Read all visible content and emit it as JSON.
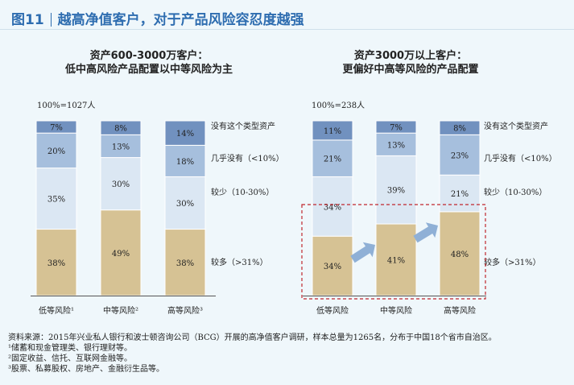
{
  "title": {
    "label": "图11",
    "text": "越高净值客户，对于产品风险容忍度越强"
  },
  "chart_data": [
    {
      "type": "bar",
      "stacked": true,
      "title_lines": [
        "资产600-3000万客户：",
        "低中高风险产品配置以中等风险为主"
      ],
      "total_note": "100%=1027人",
      "categories": [
        "低等风险¹",
        "中等风险²",
        "高等风险³"
      ],
      "series": [
        {
          "name": "较多（>31%）",
          "values": [
            38,
            49,
            38
          ],
          "labels": [
            "38%",
            "49%",
            "38%"
          ],
          "color": "#d6c294"
        },
        {
          "name": "较少（10-30%）",
          "values": [
            35,
            30,
            30
          ],
          "labels": [
            "35%",
            "30%",
            "30%"
          ],
          "color": "#dbe7f3"
        },
        {
          "name": "几乎没有（<10%）",
          "values": [
            20,
            13,
            18
          ],
          "labels": [
            "20%",
            "13%",
            "18%"
          ],
          "color": "#a6bfdd"
        },
        {
          "name": "没有这个类型资产",
          "values": [
            7,
            8,
            14
          ],
          "labels": [
            "7%",
            "8%",
            "14%"
          ],
          "color": "#7191bf"
        }
      ],
      "ylim": [
        0,
        100
      ]
    },
    {
      "type": "bar",
      "stacked": true,
      "title_lines": [
        "资产3000万以上客户：",
        "更偏好中高等风险的产品配置"
      ],
      "total_note": "100%=238人",
      "categories": [
        "低等风险",
        "中等风险",
        "高等风险"
      ],
      "series": [
        {
          "name": "较多（>31%）",
          "values": [
            34,
            41,
            48
          ],
          "labels": [
            "34%",
            "41%",
            "48%"
          ],
          "color": "#d6c294"
        },
        {
          "name": "较少（10-30%）",
          "values": [
            34,
            39,
            21
          ],
          "labels": [
            "34%",
            "39%",
            "21%"
          ],
          "color": "#dbe7f3"
        },
        {
          "name": "几乎没有（<10%）",
          "values": [
            21,
            13,
            23
          ],
          "labels": [
            "21%",
            "13%",
            "23%"
          ],
          "color": "#a6bfdd"
        },
        {
          "name": "没有这个类型资产",
          "values": [
            11,
            7,
            8
          ],
          "labels": [
            "11%",
            "7%",
            "8%"
          ],
          "color": "#7191bf"
        }
      ],
      "ylim": [
        0,
        100
      ],
      "highlight_series": "较多（>31%）",
      "arrows": true
    }
  ],
  "footnotes": [
    "资料来源：2015年兴业私人银行和波士顿咨询公司（BCG）开展的高净值客户调研，样本总量为1265名，分布于中国18个省市自治区。",
    "¹储蓄和现金管理类、银行理财等。",
    "²固定收益、信托、互联网金融等。",
    "³股票、私募股权、房地产、金融衍生品等。"
  ],
  "colors": {
    "title": "#2e6db0",
    "highlight_box": "#c0272d",
    "arrow": "#8fb0d6",
    "axis": "#555555"
  }
}
